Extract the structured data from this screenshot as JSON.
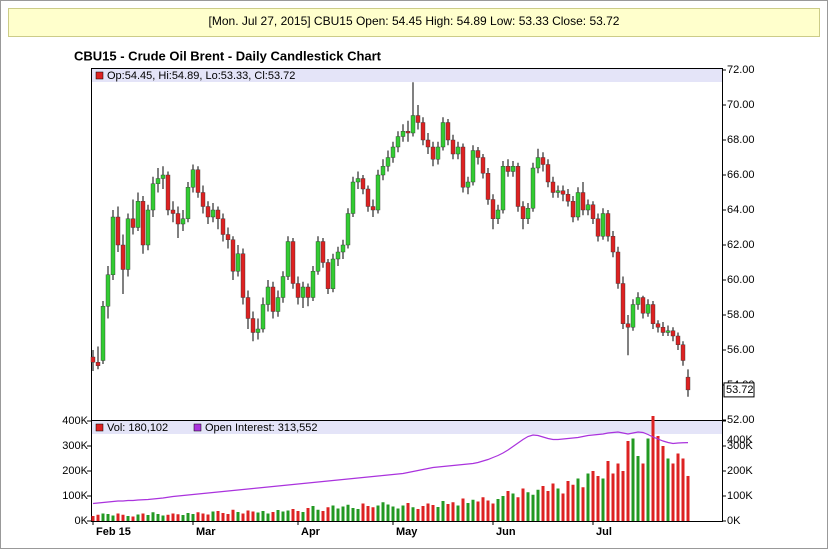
{
  "header": "[Mon. Jul 27, 2015] CBU15 Open: 54.45 High: 54.89 Low: 53.33 Close: 53.72",
  "chart_data": {
    "type": "candlestick",
    "title": "CBU15 - Crude Oil Brent - Daily Candlestick Chart",
    "price_legend": "Op:54.45, Hi:54.89, Lo:53.33, Cl:53.72",
    "volume_legend": "Vol: 180,102",
    "oi_legend": "Open Interest: 313,552",
    "up_color": "#33cc33",
    "down_color": "#dd2222",
    "oi_color": "#aa33dd",
    "categories": [
      "Feb 15",
      null,
      null,
      null,
      null,
      null,
      null,
      null,
      null,
      null,
      null,
      null,
      null,
      null,
      null,
      null,
      null,
      null,
      null,
      null,
      "Mar",
      null,
      null,
      null,
      null,
      null,
      null,
      null,
      null,
      null,
      null,
      null,
      null,
      null,
      null,
      null,
      null,
      null,
      null,
      null,
      null,
      "Apr",
      null,
      null,
      null,
      null,
      null,
      null,
      null,
      null,
      null,
      null,
      null,
      null,
      null,
      null,
      null,
      null,
      null,
      null,
      "May",
      null,
      null,
      null,
      null,
      null,
      null,
      null,
      null,
      null,
      null,
      null,
      null,
      null,
      null,
      null,
      null,
      null,
      null,
      null,
      "Jun",
      null,
      null,
      null,
      null,
      null,
      null,
      null,
      null,
      null,
      null,
      null,
      null,
      null,
      null,
      null,
      null,
      null,
      null,
      null,
      "Jul",
      null,
      null,
      null,
      null,
      null,
      null,
      null,
      null,
      null,
      null,
      null,
      null,
      null,
      null,
      null,
      null,
      null,
      null,
      null
    ],
    "ohlc": [
      [
        55.6,
        56.0,
        54.8,
        55.3
      ],
      [
        55.3,
        56.2,
        54.9,
        55.1
      ],
      [
        55.4,
        58.8,
        55.2,
        58.5
      ],
      [
        58.5,
        60.8,
        57.8,
        60.3
      ],
      [
        60.3,
        64.0,
        60.0,
        63.6
      ],
      [
        63.6,
        64.2,
        61.6,
        62.0
      ],
      [
        62.0,
        62.6,
        59.2,
        60.6
      ],
      [
        60.6,
        63.8,
        60.2,
        63.5
      ],
      [
        63.5,
        64.6,
        62.6,
        63.0
      ],
      [
        63.0,
        65.0,
        62.8,
        64.5
      ],
      [
        64.5,
        64.8,
        61.5,
        62.0
      ],
      [
        62.0,
        64.3,
        61.7,
        64.0
      ],
      [
        64.0,
        65.9,
        63.6,
        65.5
      ],
      [
        65.5,
        66.4,
        65.0,
        65.8
      ],
      [
        65.8,
        66.5,
        65.2,
        66.0
      ],
      [
        66.0,
        66.2,
        63.7,
        64.0
      ],
      [
        64.0,
        64.5,
        63.3,
        63.8
      ],
      [
        63.8,
        64.2,
        62.4,
        63.2
      ],
      [
        63.2,
        64.0,
        62.8,
        63.5
      ],
      [
        63.5,
        65.6,
        63.3,
        65.3
      ],
      [
        65.3,
        66.6,
        65.0,
        66.3
      ],
      [
        66.3,
        66.5,
        64.7,
        65.0
      ],
      [
        65.0,
        65.4,
        63.8,
        64.2
      ],
      [
        64.2,
        64.5,
        63.2,
        63.6
      ],
      [
        63.6,
        64.4,
        63.3,
        64.0
      ],
      [
        64.0,
        64.2,
        62.9,
        63.5
      ],
      [
        63.5,
        63.8,
        62.2,
        62.6
      ],
      [
        62.6,
        63.0,
        61.8,
        62.3
      ],
      [
        62.3,
        62.5,
        60.0,
        60.5
      ],
      [
        60.5,
        62.0,
        60.2,
        61.5
      ],
      [
        61.5,
        61.8,
        58.6,
        59.0
      ],
      [
        59.0,
        59.4,
        57.2,
        57.8
      ],
      [
        57.8,
        58.2,
        56.5,
        57.0
      ],
      [
        57.0,
        57.8,
        56.6,
        57.2
      ],
      [
        57.2,
        59.0,
        57.0,
        58.6
      ],
      [
        58.6,
        60.0,
        58.2,
        59.6
      ],
      [
        59.6,
        59.9,
        57.8,
        58.2
      ],
      [
        58.2,
        59.4,
        57.9,
        59.0
      ],
      [
        59.0,
        60.5,
        58.7,
        60.2
      ],
      [
        60.2,
        62.5,
        60.0,
        62.2
      ],
      [
        62.2,
        62.4,
        59.5,
        59.8
      ],
      [
        59.8,
        60.2,
        58.6,
        59.0
      ],
      [
        59.0,
        59.9,
        58.4,
        59.6
      ],
      [
        59.6,
        59.8,
        58.5,
        59.0
      ],
      [
        59.0,
        60.8,
        58.8,
        60.5
      ],
      [
        60.5,
        62.5,
        60.3,
        62.2
      ],
      [
        62.2,
        62.4,
        60.7,
        61.0
      ],
      [
        61.0,
        61.2,
        59.2,
        59.5
      ],
      [
        59.5,
        61.5,
        59.3,
        61.2
      ],
      [
        61.2,
        61.9,
        60.8,
        61.6
      ],
      [
        61.6,
        62.3,
        61.2,
        62.0
      ],
      [
        62.0,
        64.1,
        61.8,
        63.8
      ],
      [
        63.8,
        65.9,
        63.6,
        65.6
      ],
      [
        65.6,
        66.2,
        65.2,
        65.8
      ],
      [
        65.8,
        66.0,
        64.9,
        65.2
      ],
      [
        65.2,
        65.4,
        63.9,
        64.2
      ],
      [
        64.2,
        64.6,
        63.6,
        64.0
      ],
      [
        64.0,
        66.3,
        63.8,
        66.0
      ],
      [
        66.0,
        66.9,
        65.7,
        66.5
      ],
      [
        66.5,
        67.4,
        66.2,
        67.0
      ],
      [
        67.0,
        67.9,
        66.7,
        67.6
      ],
      [
        67.6,
        68.5,
        67.3,
        68.2
      ],
      [
        68.2,
        68.9,
        67.9,
        68.5
      ],
      [
        68.5,
        69.1,
        67.9,
        68.4
      ],
      [
        68.4,
        71.3,
        68.2,
        69.4
      ],
      [
        69.4,
        70.0,
        68.6,
        69.0
      ],
      [
        69.0,
        69.3,
        67.7,
        68.0
      ],
      [
        68.0,
        68.4,
        67.2,
        67.6
      ],
      [
        67.6,
        67.9,
        66.5,
        66.9
      ],
      [
        66.9,
        67.9,
        66.6,
        67.6
      ],
      [
        67.6,
        69.3,
        67.4,
        69.0
      ],
      [
        69.0,
        69.2,
        67.7,
        68.0
      ],
      [
        68.0,
        68.3,
        66.9,
        67.2
      ],
      [
        67.2,
        67.9,
        66.9,
        67.6
      ],
      [
        67.6,
        67.8,
        65.0,
        65.3
      ],
      [
        65.3,
        65.9,
        64.9,
        65.6
      ],
      [
        65.6,
        67.7,
        65.4,
        67.4
      ],
      [
        67.4,
        67.6,
        66.6,
        67.0
      ],
      [
        67.0,
        67.2,
        65.8,
        66.1
      ],
      [
        66.1,
        66.4,
        64.3,
        64.6
      ],
      [
        64.6,
        64.9,
        62.9,
        63.5
      ],
      [
        63.5,
        64.3,
        63.2,
        64.0
      ],
      [
        64.0,
        66.8,
        63.8,
        66.5
      ],
      [
        66.5,
        66.9,
        65.9,
        66.2
      ],
      [
        66.2,
        66.8,
        65.9,
        66.5
      ],
      [
        66.5,
        66.7,
        63.9,
        64.2
      ],
      [
        64.2,
        64.5,
        62.9,
        63.5
      ],
      [
        63.5,
        64.4,
        63.2,
        64.1
      ],
      [
        64.1,
        66.7,
        63.9,
        66.4
      ],
      [
        66.4,
        67.5,
        66.1,
        67.0
      ],
      [
        67.0,
        67.3,
        66.2,
        66.6
      ],
      [
        66.6,
        66.9,
        65.3,
        65.6
      ],
      [
        65.6,
        65.9,
        64.7,
        65.0
      ],
      [
        65.0,
        65.4,
        64.7,
        65.1
      ],
      [
        65.1,
        65.4,
        64.5,
        64.9
      ],
      [
        64.9,
        65.2,
        64.2,
        64.5
      ],
      [
        64.5,
        64.8,
        63.3,
        63.6
      ],
      [
        63.6,
        65.3,
        63.4,
        65.0
      ],
      [
        65.0,
        65.6,
        63.7,
        64.0
      ],
      [
        64.0,
        64.6,
        63.7,
        64.3
      ],
      [
        64.3,
        64.5,
        63.2,
        63.5
      ],
      [
        63.5,
        63.8,
        62.2,
        62.5
      ],
      [
        62.5,
        64.1,
        62.3,
        63.8
      ],
      [
        63.8,
        64.0,
        62.2,
        62.5
      ],
      [
        62.5,
        62.8,
        61.3,
        61.6
      ],
      [
        61.6,
        61.9,
        59.5,
        59.8
      ],
      [
        59.8,
        60.2,
        57.2,
        57.5
      ],
      [
        57.5,
        58.0,
        55.7,
        57.3
      ],
      [
        57.3,
        58.9,
        57.1,
        58.6
      ],
      [
        58.6,
        59.3,
        58.3,
        59.0
      ],
      [
        59.0,
        59.1,
        57.8,
        58.1
      ],
      [
        58.1,
        58.9,
        57.9,
        58.6
      ],
      [
        58.6,
        58.8,
        57.2,
        57.5
      ],
      [
        57.5,
        57.7,
        57.0,
        57.3
      ],
      [
        57.3,
        57.6,
        56.8,
        57.0
      ],
      [
        57.0,
        57.4,
        56.8,
        57.1
      ],
      [
        57.1,
        57.3,
        56.5,
        56.8
      ],
      [
        56.8,
        57.0,
        56.0,
        56.3
      ],
      [
        56.3,
        56.5,
        55.1,
        55.4
      ],
      [
        54.45,
        54.89,
        53.33,
        53.72
      ]
    ],
    "volume": [
      20000,
      25000,
      30000,
      28000,
      22000,
      30000,
      25000,
      20000,
      18000,
      26000,
      30000,
      24000,
      35000,
      28000,
      22000,
      25000,
      30000,
      27000,
      24000,
      32000,
      28000,
      35000,
      30000,
      26000,
      38000,
      40000,
      32000,
      28000,
      45000,
      36000,
      30000,
      42000,
      38000,
      34000,
      40000,
      30000,
      36000,
      44000,
      38000,
      42000,
      48000,
      40000,
      36000,
      52000,
      60000,
      45000,
      40000,
      55000,
      62000,
      50000,
      58000,
      65000,
      52000,
      48000,
      70000,
      60000,
      55000,
      62000,
      75000,
      66000,
      58000,
      50000,
      62000,
      72000,
      55000,
      48000,
      60000,
      70000,
      64000,
      56000,
      80000,
      68000,
      75000,
      62000,
      90000,
      72000,
      85000,
      78000,
      95000,
      82000,
      70000,
      88000,
      100000,
      120000,
      110000,
      95000,
      130000,
      115000,
      105000,
      125000,
      140000,
      120000,
      150000,
      130000,
      110000,
      160000,
      145000,
      170000,
      135000,
      190000,
      200000,
      180000,
      170000,
      240000,
      190000,
      230000,
      200000,
      320000,
      330000,
      260000,
      230000,
      330000,
      420000,
      340000,
      300000,
      250000,
      230000,
      270000,
      250000,
      180102
    ],
    "open_interest": [
      70000,
      72000,
      74000,
      76000,
      78000,
      80000,
      80000,
      82000,
      82000,
      84000,
      85000,
      86000,
      88000,
      90000,
      92000,
      95000,
      98000,
      100000,
      102000,
      104000,
      106000,
      108000,
      110000,
      112000,
      114000,
      116000,
      118000,
      120000,
      122000,
      124000,
      126000,
      128000,
      130000,
      132000,
      134000,
      136000,
      138000,
      140000,
      142000,
      144000,
      146000,
      148000,
      150000,
      152000,
      154000,
      156000,
      158000,
      160000,
      162000,
      164000,
      166000,
      168000,
      170000,
      172000,
      174000,
      176000,
      178000,
      180000,
      182000,
      184000,
      186000,
      188000,
      190000,
      194000,
      198000,
      202000,
      206000,
      210000,
      214000,
      216000,
      218000,
      220000,
      222000,
      224000,
      226000,
      228000,
      230000,
      234000,
      240000,
      246000,
      254000,
      262000,
      272000,
      284000,
      298000,
      312000,
      326000,
      338000,
      344000,
      342000,
      336000,
      330000,
      326000,
      326000,
      328000,
      330000,
      332000,
      334000,
      338000,
      342000,
      344000,
      346000,
      348000,
      352000,
      354000,
      356000,
      352000,
      348000,
      352000,
      356000,
      354000,
      346000,
      336000,
      328000,
      320000,
      314000,
      310000,
      312000,
      313000,
      313552
    ],
    "ylim": [
      52,
      72
    ],
    "yticks": [
      {
        "value": 52,
        "label": "52.00"
      },
      {
        "value": 54,
        "label": "54.00"
      },
      {
        "value": 56,
        "label": "56.00"
      },
      {
        "value": 58,
        "label": "58.00"
      },
      {
        "value": 60,
        "label": "60.00"
      },
      {
        "value": 62,
        "label": "62.00"
      },
      {
        "value": 64,
        "label": "64.00"
      },
      {
        "value": 66,
        "label": "66.00"
      },
      {
        "value": 68,
        "label": "68.00"
      },
      {
        "value": 70,
        "label": "70.00"
      },
      {
        "value": 72,
        "label": "72.00"
      }
    ],
    "volume_lim": [
      0,
      400000
    ],
    "volume_ticks": [
      {
        "value": 0,
        "label": "0K"
      },
      {
        "value": 100000,
        "label": "100K"
      },
      {
        "value": 200000,
        "label": "200K"
      },
      {
        "value": 300000,
        "label": "300K"
      },
      {
        "value": 400000,
        "label": "400K"
      }
    ],
    "oi_lim": [
      0,
      400000
    ],
    "oi_ticks": [
      {
        "value": 0,
        "label": "0K"
      },
      {
        "value": 100000,
        "label": "100K"
      },
      {
        "value": 200000,
        "label": "200K"
      },
      {
        "value": 300000,
        "label": "300K"
      },
      {
        "value": 400000,
        "label": "400K"
      }
    ]
  }
}
